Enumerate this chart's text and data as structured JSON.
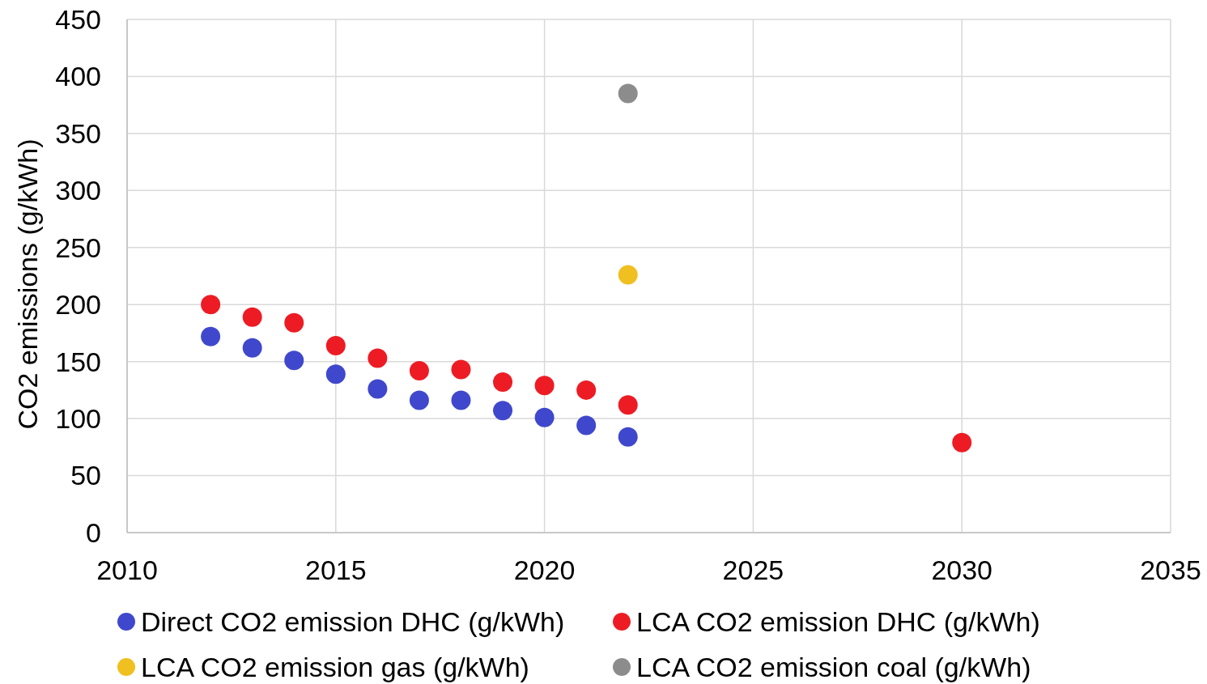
{
  "chart_data": {
    "type": "scatter",
    "ylabel": "CO2 emissions (g/kWh)",
    "xlim": [
      2010,
      2035
    ],
    "xticks": [
      2010,
      2015,
      2020,
      2025,
      2030,
      2035
    ],
    "ylim": [
      0,
      450
    ],
    "yticks": [
      0,
      50,
      100,
      150,
      200,
      250,
      300,
      350,
      400,
      450
    ],
    "grid": true,
    "legend": "bottom",
    "marker": "circle",
    "series": [
      {
        "name": "Direct CO2 emission DHC (g/kWh)",
        "color": "#3f48cc",
        "x": [
          2012,
          2013,
          2014,
          2015,
          2016,
          2017,
          2018,
          2019,
          2020,
          2021,
          2022
        ],
        "values": [
          172,
          162,
          151,
          139,
          126,
          116,
          116,
          107,
          101,
          94,
          84
        ]
      },
      {
        "name": "LCA CO2 emission DHC (g/kWh)",
        "color": "#ed1c24",
        "x": [
          2012,
          2013,
          2014,
          2015,
          2016,
          2017,
          2018,
          2019,
          2020,
          2021,
          2022,
          2030
        ],
        "values": [
          200,
          189,
          184,
          164,
          153,
          142,
          143,
          132,
          129,
          125,
          112,
          79
        ]
      },
      {
        "name": "LCA CO2 emission gas (g/kWh)",
        "color": "#f0c020",
        "x": [
          2022
        ],
        "values": [
          226
        ]
      },
      {
        "name": "LCA CO2 emission coal (g/kWh)",
        "color": "#8c8c8c",
        "x": [
          2022
        ],
        "values": [
          385
        ]
      }
    ]
  }
}
